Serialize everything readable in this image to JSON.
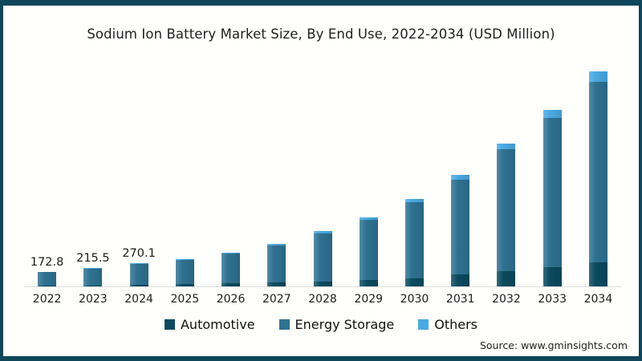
{
  "chart_data": {
    "type": "bar",
    "stacked": true,
    "title": "Sodium Ion Battery Market Size, By End Use, 2022-2034 (USD Million)",
    "categories": [
      "2022",
      "2023",
      "2024",
      "2025",
      "2026",
      "2027",
      "2028",
      "2029",
      "2030",
      "2031",
      "2032",
      "2033",
      "2034"
    ],
    "series": [
      {
        "name": "Automotive",
        "color": "#0b4a5e",
        "values": [
          10,
          13,
          18,
          24,
          37,
          47,
          56,
          75,
          94,
          140,
          178,
          224,
          280
        ]
      },
      {
        "name": "Energy Storage",
        "color": "#2f7191",
        "values": [
          158.8,
          197.5,
          243.1,
          287,
          344,
          429,
          561,
          702,
          889,
          1104,
          1422,
          1742,
          2104
        ]
      },
      {
        "name": "Others",
        "color": "#4aa9e2",
        "values": [
          4,
          5,
          9,
          9,
          14,
          19,
          28,
          28,
          37,
          56,
          65,
          89,
          121
        ]
      }
    ],
    "totals": [
      172.8,
      215.5,
      270.1,
      320,
      395,
      495,
      645,
      805,
      1020,
      1300,
      1665,
      2055,
      2505
    ],
    "value_labels": [
      "172.8",
      "215.5",
      "270.1",
      "",
      "",
      "",
      "",
      "",
      "",
      "",
      "",
      "",
      ""
    ],
    "xlabel": "",
    "ylabel": "",
    "ylim": [
      0,
      2600
    ],
    "grid": false,
    "legend_position": "bottom"
  },
  "source": "Source: www.gminsights.com",
  "colors": {
    "frame_border": "#0f4659",
    "axis_line": "#dcdcdc",
    "text": "#1f1f1f"
  }
}
